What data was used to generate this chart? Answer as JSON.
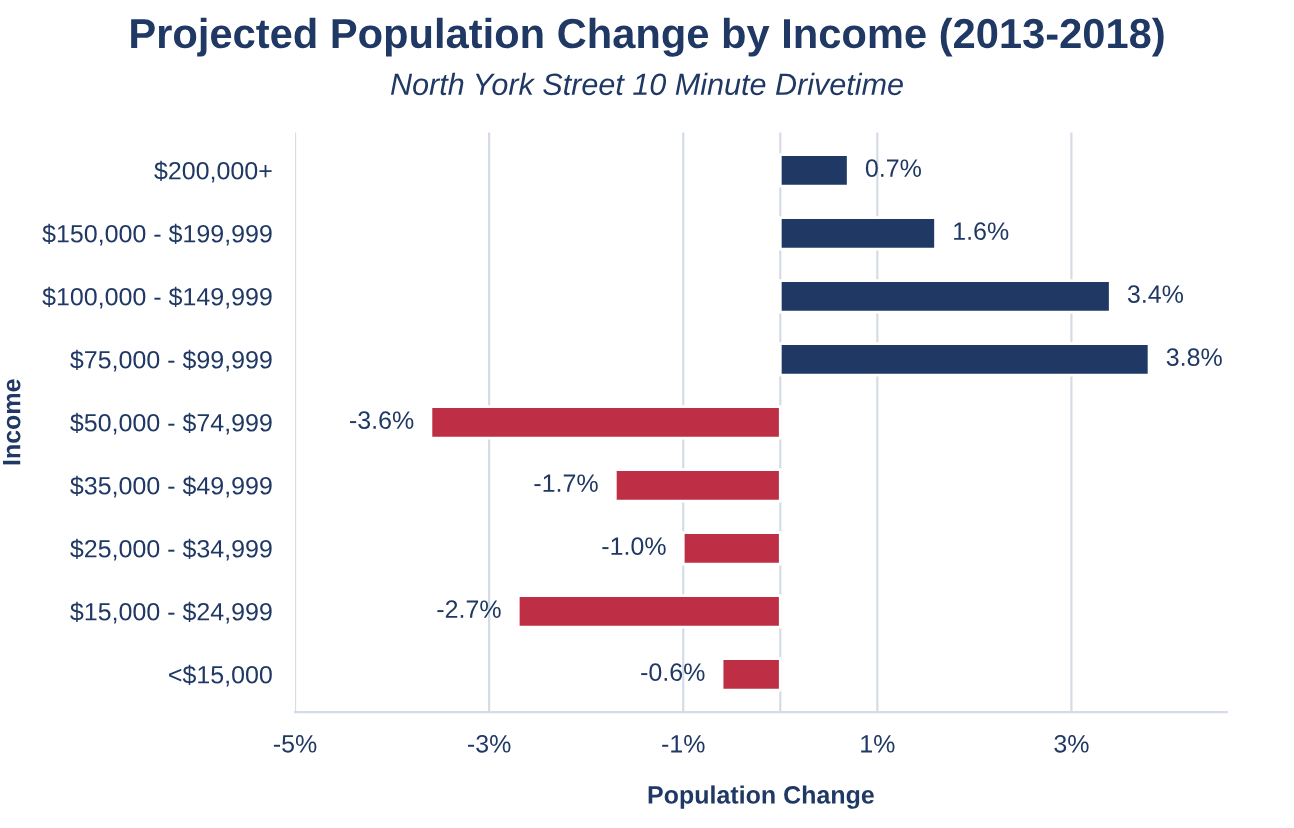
{
  "chart_data": {
    "type": "bar",
    "orientation": "horizontal",
    "title": "Projected Population Change by Income (2013-2018)",
    "subtitle": "North York Street 10 Minute Drivetime",
    "xlabel": "Population Change",
    "ylabel": "Income",
    "categories": [
      "$200,000+",
      "$150,000 - $199,999",
      "$100,000 - $149,999",
      "$75,000 - $99,999",
      "$50,000 - $74,999",
      "$35,000 - $49,999",
      "$25,000 - $34,999",
      "$15,000 - $24,999",
      "<$15,000"
    ],
    "values": [
      0.7,
      1.6,
      3.4,
      3.8,
      -3.6,
      -1.7,
      -1.0,
      -2.7,
      -0.6
    ],
    "value_labels": [
      "0.7%",
      "1.6%",
      "3.4%",
      "3.8%",
      "-3.6%",
      "-1.7%",
      "-1.0%",
      "-2.7%",
      "-0.6%"
    ],
    "colors": [
      "#1f3864",
      "#1f3864",
      "#1f3864",
      "#1f3864",
      "#be2f45",
      "#be2f45",
      "#be2f45",
      "#be2f45",
      "#be2f45"
    ],
    "xlim": [
      -5,
      4.6
    ],
    "xticks": [
      {
        "value": -5,
        "label": "-5%"
      },
      {
        "value": -3,
        "label": "-3%"
      },
      {
        "value": -1,
        "label": "-1%"
      },
      {
        "value": 1,
        "label": "1%"
      },
      {
        "value": 3,
        "label": "3%"
      }
    ],
    "grid": "x",
    "legend": false
  }
}
